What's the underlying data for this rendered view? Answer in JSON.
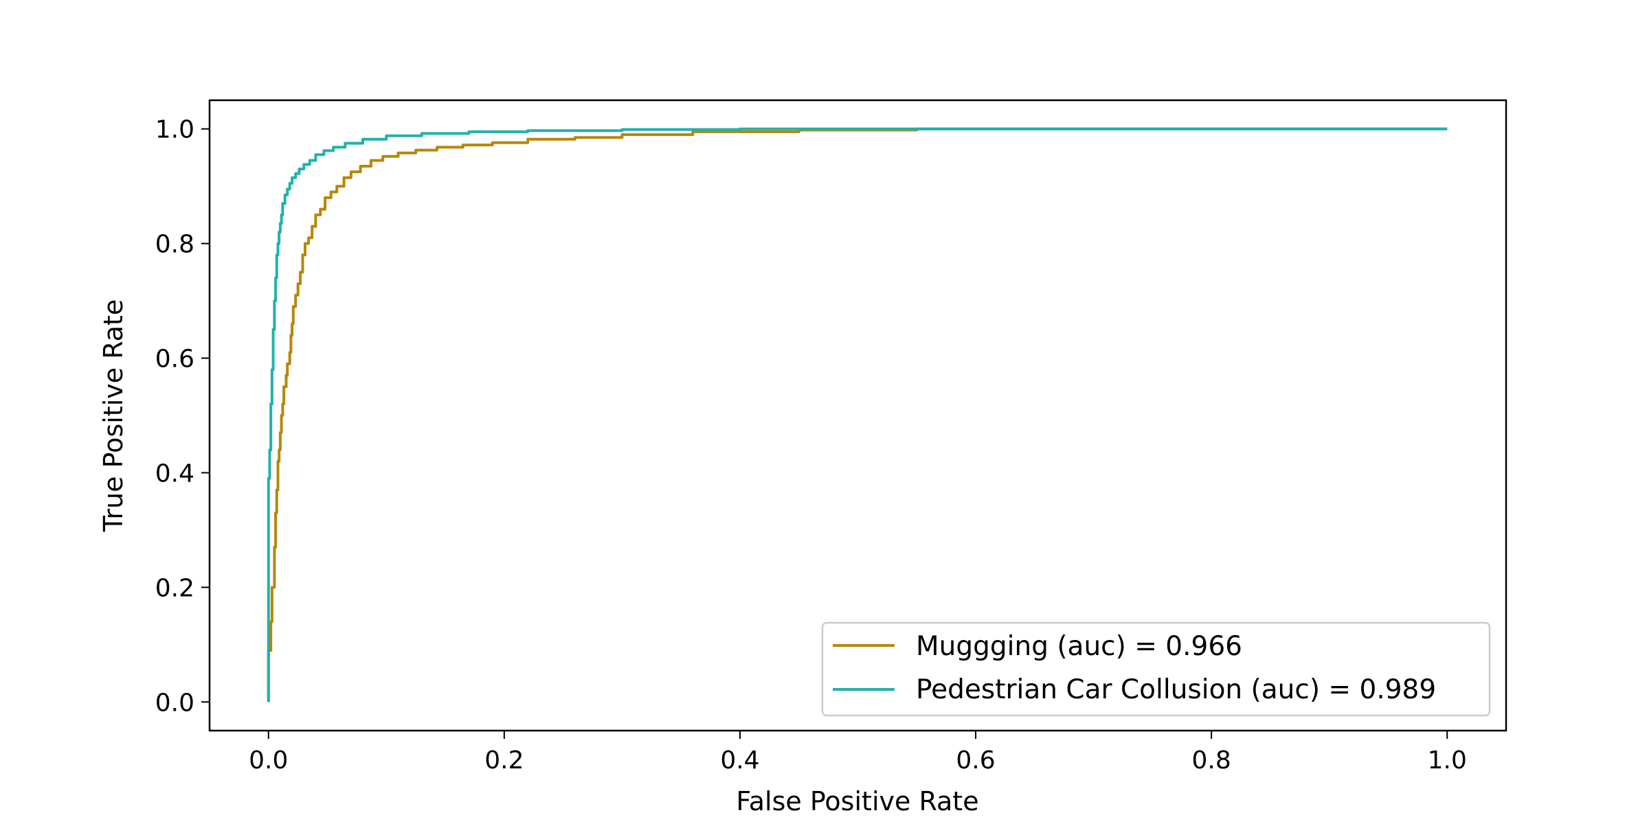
{
  "chart_data": {
    "type": "line",
    "title": "",
    "xlabel": "False Positive Rate",
    "ylabel": "True Positive Rate",
    "xlim": [
      -0.05,
      1.05
    ],
    "ylim": [
      -0.05,
      1.05
    ],
    "xticks": [
      0.0,
      0.2,
      0.4,
      0.6,
      0.8,
      1.0
    ],
    "xtick_labels": [
      "0.0",
      "0.2",
      "0.4",
      "0.6",
      "0.8",
      "1.0"
    ],
    "yticks": [
      0.0,
      0.2,
      0.4,
      0.6,
      0.8,
      1.0
    ],
    "ytick_labels": [
      "0.0",
      "0.2",
      "0.4",
      "0.6",
      "0.8",
      "1.0"
    ],
    "grid": false,
    "legend_position": "lower-right",
    "series": [
      {
        "name": "Muggging (auc) = 0.966",
        "color": "#b8860b",
        "x": [
          0.0,
          0.0,
          0.002,
          0.003,
          0.005,
          0.006,
          0.007,
          0.008,
          0.009,
          0.01,
          0.011,
          0.012,
          0.013,
          0.015,
          0.016,
          0.018,
          0.019,
          0.02,
          0.021,
          0.023,
          0.025,
          0.027,
          0.029,
          0.031,
          0.034,
          0.037,
          0.04,
          0.044,
          0.048,
          0.053,
          0.058,
          0.064,
          0.07,
          0.078,
          0.087,
          0.097,
          0.11,
          0.125,
          0.143,
          0.165,
          0.19,
          0.22,
          0.26,
          0.3,
          0.36,
          0.45,
          0.55,
          0.7,
          0.85,
          1.0
        ],
        "y": [
          0.0,
          0.05,
          0.09,
          0.14,
          0.2,
          0.27,
          0.33,
          0.37,
          0.42,
          0.44,
          0.47,
          0.5,
          0.52,
          0.55,
          0.57,
          0.59,
          0.61,
          0.64,
          0.66,
          0.69,
          0.71,
          0.73,
          0.75,
          0.78,
          0.8,
          0.81,
          0.83,
          0.85,
          0.86,
          0.88,
          0.89,
          0.9,
          0.915,
          0.925,
          0.935,
          0.945,
          0.952,
          0.958,
          0.963,
          0.968,
          0.972,
          0.976,
          0.982,
          0.985,
          0.99,
          0.995,
          0.998,
          1.0,
          1.0,
          1.0
        ]
      },
      {
        "name": "Pedestrian Car Collusion (auc) = 0.989",
        "color": "#20b2aa",
        "x": [
          0.0,
          0.0,
          0.001,
          0.002,
          0.003,
          0.004,
          0.005,
          0.006,
          0.007,
          0.008,
          0.009,
          0.01,
          0.011,
          0.012,
          0.014,
          0.016,
          0.018,
          0.02,
          0.023,
          0.026,
          0.03,
          0.035,
          0.04,
          0.047,
          0.055,
          0.065,
          0.08,
          0.1,
          0.13,
          0.17,
          0.22,
          0.3,
          0.4,
          0.5,
          0.7,
          1.0
        ],
        "y": [
          0.0,
          0.2,
          0.39,
          0.44,
          0.52,
          0.58,
          0.65,
          0.7,
          0.74,
          0.78,
          0.8,
          0.82,
          0.835,
          0.85,
          0.87,
          0.885,
          0.895,
          0.905,
          0.915,
          0.922,
          0.93,
          0.938,
          0.945,
          0.955,
          0.962,
          0.968,
          0.975,
          0.982,
          0.988,
          0.992,
          0.995,
          0.997,
          0.999,
          1.0,
          1.0,
          1.0
        ]
      }
    ]
  }
}
